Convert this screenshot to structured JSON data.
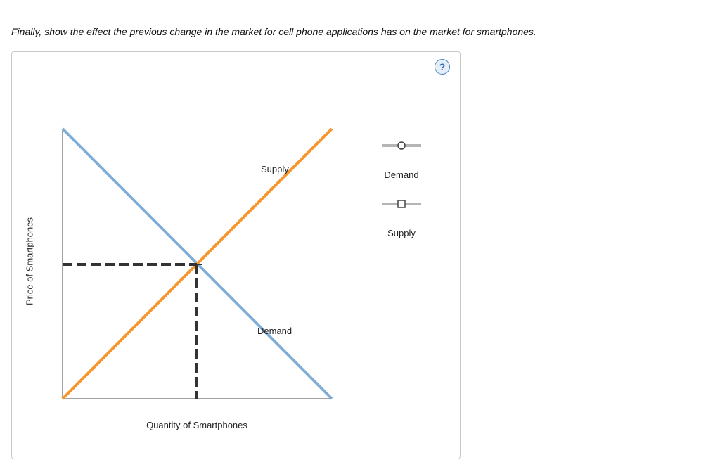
{
  "prompt": "Finally, show the effect the previous change in the market for cell phone applications has on the market for smartphones.",
  "help_icon": "question-mark-icon",
  "colors": {
    "demand": "#7fadd6",
    "supply": "#f7962d",
    "equilibrium_lines": "#333333",
    "legend_tool": "#b5b5b5"
  },
  "graph": {
    "x_axis_label": "Quantity of Smartphones",
    "y_axis_label": "Price of Smartphones",
    "curves": [
      {
        "name": "Demand",
        "label": "Demand"
      },
      {
        "name": "Supply",
        "label": "Supply"
      }
    ]
  },
  "legend": {
    "demand_tool_label": "Demand",
    "demand_tool_icon": "circle-marker-icon",
    "supply_tool_label": "Supply",
    "supply_tool_icon": "square-marker-icon"
  }
}
